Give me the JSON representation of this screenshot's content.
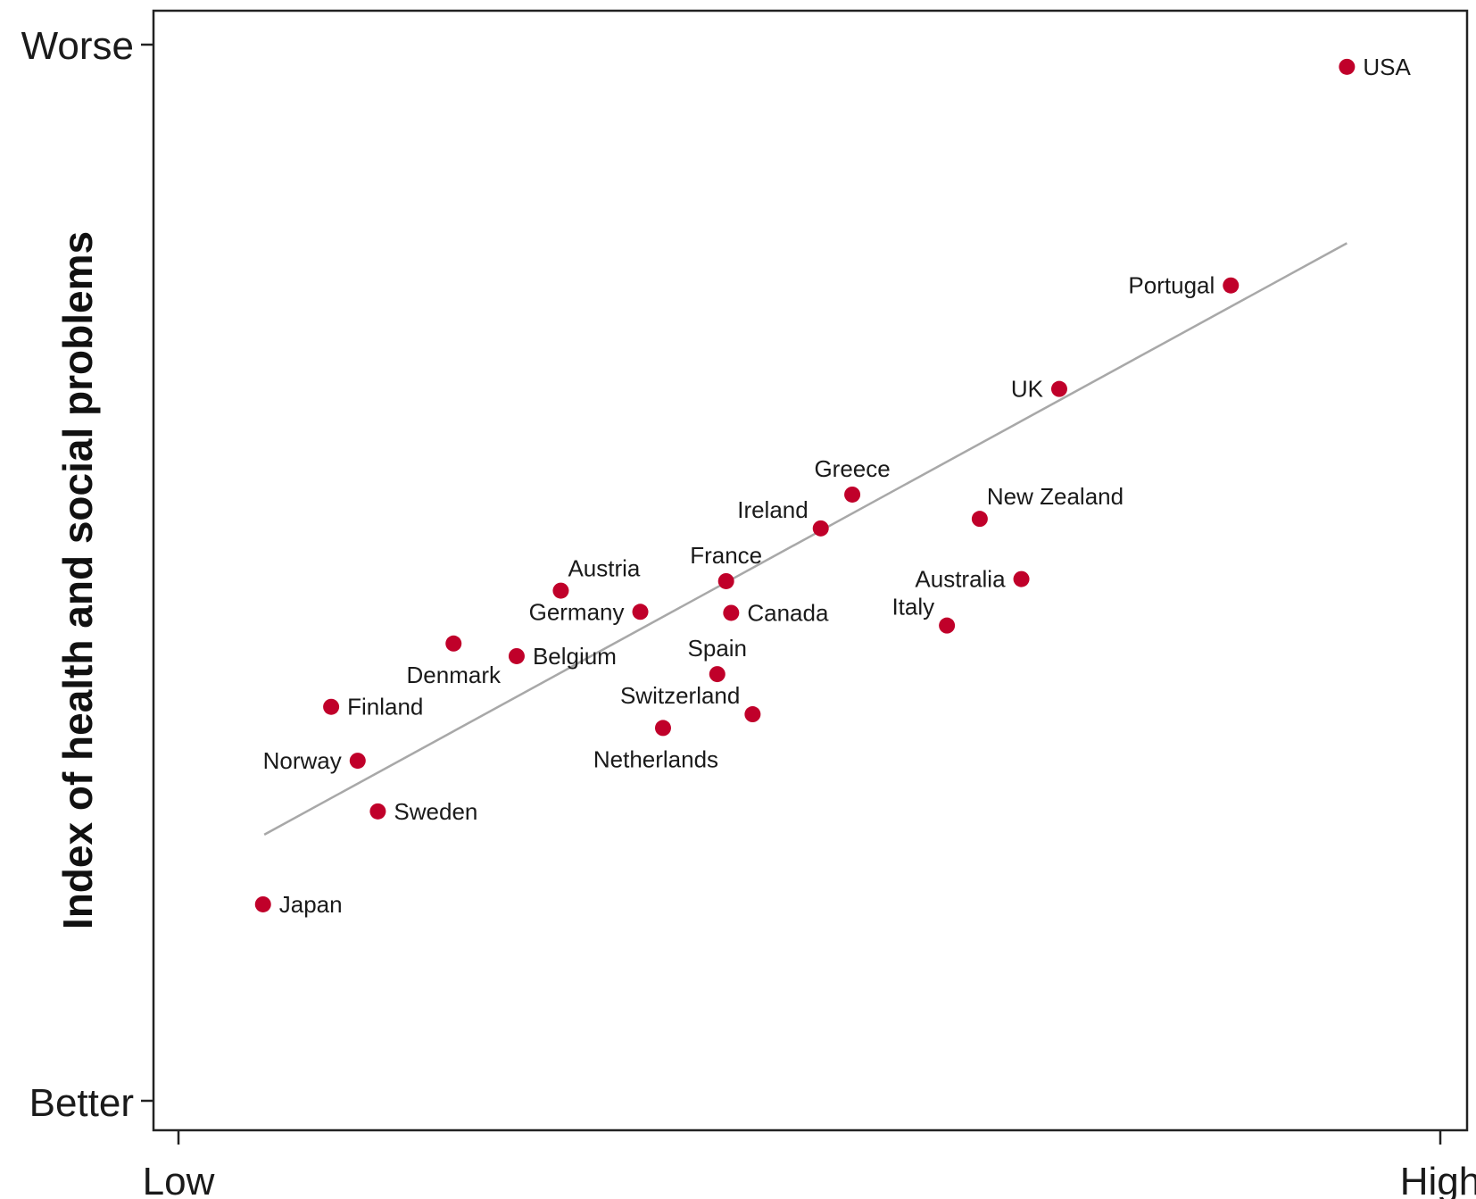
{
  "chart_data": {
    "type": "scatter",
    "title": "",
    "xlabel": "",
    "ylabel": "Index of health and social problems",
    "xlim": [
      0,
      10
    ],
    "ylim": [
      0,
      10
    ],
    "x_ticks": [
      {
        "value": 0,
        "label": "Low"
      },
      {
        "value": 10,
        "label": "High"
      }
    ],
    "y_ticks": [
      {
        "value": 0,
        "label": "Better"
      },
      {
        "value": 10,
        "label": "Worse"
      }
    ],
    "grid": false,
    "legend": "none",
    "point_color": "#c0002a",
    "trendline_color": "#a8a8a8",
    "trendline": {
      "x": [
        0.68,
        9.26
      ],
      "y": [
        2.52,
        8.12
      ]
    },
    "points": [
      {
        "label": "USA",
        "x": 9.26,
        "y": 9.79,
        "label_pos": "right"
      },
      {
        "label": "Portugal",
        "x": 8.34,
        "y": 7.72,
        "label_pos": "left"
      },
      {
        "label": "UK",
        "x": 6.98,
        "y": 6.74,
        "label_pos": "left"
      },
      {
        "label": "Greece",
        "x": 5.34,
        "y": 5.74,
        "label_pos": "above"
      },
      {
        "label": "Ireland",
        "x": 5.09,
        "y": 5.42,
        "label_pos": "above-left"
      },
      {
        "label": "New Zealand",
        "x": 6.35,
        "y": 5.51,
        "label_pos": "above-right"
      },
      {
        "label": "Australia",
        "x": 6.68,
        "y": 4.94,
        "label_pos": "left"
      },
      {
        "label": "Italy",
        "x": 6.09,
        "y": 4.5,
        "label_pos": "above-left"
      },
      {
        "label": "France",
        "x": 4.34,
        "y": 4.92,
        "label_pos": "above"
      },
      {
        "label": "Canada",
        "x": 4.38,
        "y": 4.62,
        "label_pos": "right"
      },
      {
        "label": "Austria",
        "x": 3.03,
        "y": 4.83,
        "label_pos": "above-right"
      },
      {
        "label": "Germany",
        "x": 3.66,
        "y": 4.63,
        "label_pos": "left"
      },
      {
        "label": "Spain",
        "x": 4.27,
        "y": 4.04,
        "label_pos": "above"
      },
      {
        "label": "Switzerland",
        "x": 4.55,
        "y": 3.66,
        "label_pos": "above-left"
      },
      {
        "label": "Netherlands",
        "x": 3.84,
        "y": 3.53,
        "label_pos": "below-left"
      },
      {
        "label": "Belgium",
        "x": 2.68,
        "y": 4.21,
        "label_pos": "right"
      },
      {
        "label": "Denmark",
        "x": 2.18,
        "y": 4.33,
        "label_pos": "below"
      },
      {
        "label": "Finland",
        "x": 1.21,
        "y": 3.73,
        "label_pos": "right"
      },
      {
        "label": "Norway",
        "x": 1.42,
        "y": 3.22,
        "label_pos": "left"
      },
      {
        "label": "Sweden",
        "x": 1.58,
        "y": 2.74,
        "label_pos": "right"
      },
      {
        "label": "Japan",
        "x": 0.67,
        "y": 1.86,
        "label_pos": "right"
      }
    ]
  }
}
